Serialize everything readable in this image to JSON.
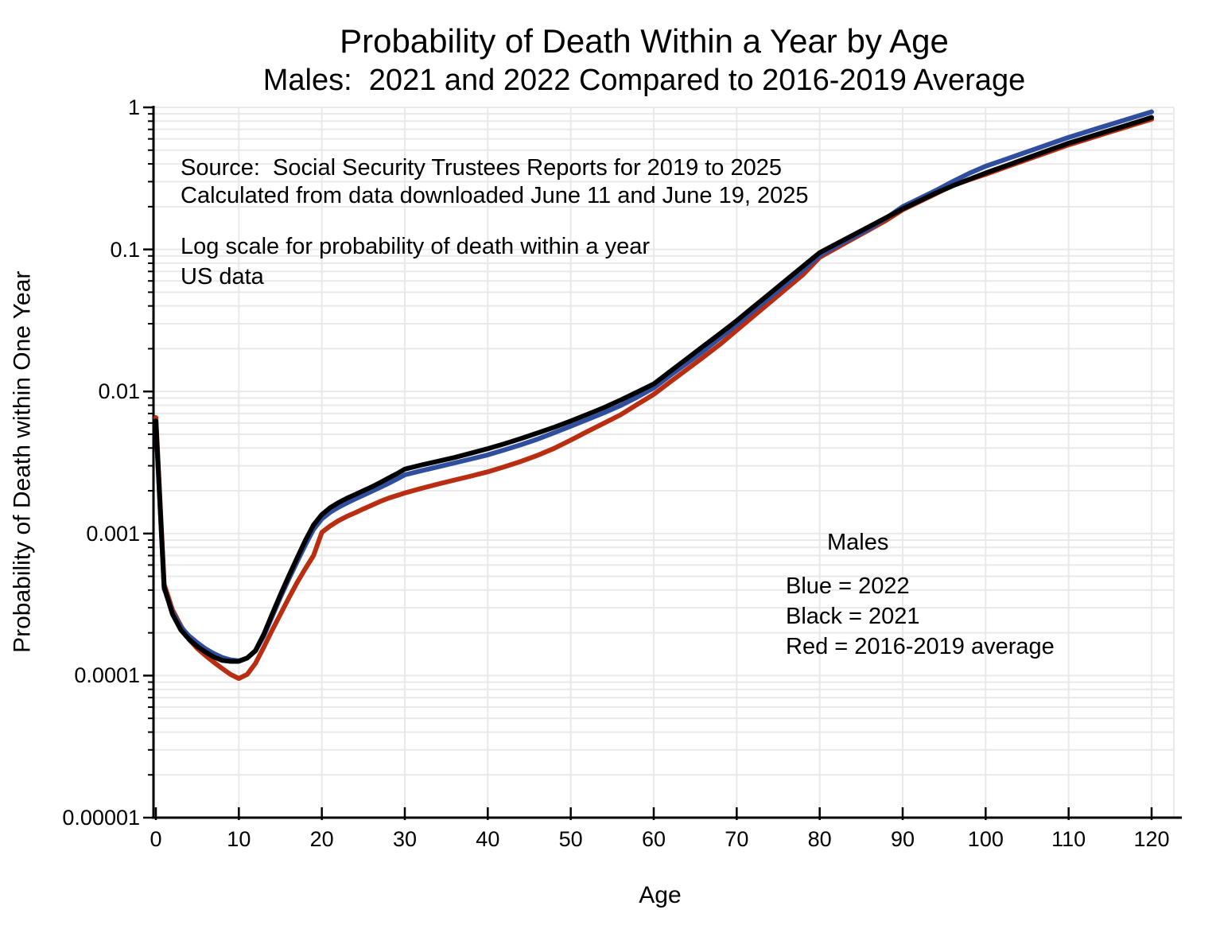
{
  "title": "Probability of Death Within a Year by Age",
  "subtitle": "Males:  2021 and 2022 Compared to 2016-2019 Average",
  "annotations": {
    "source_line1": "Source:  Social Security Trustees Reports for 2019 to 2025",
    "source_line2": "Calculated from data downloaded June 11 and June 19, 2025",
    "note_line1": "Log scale for probability of death within a year",
    "note_line2": "US data"
  },
  "legend": {
    "title": "Males",
    "entries": [
      {
        "label": "Blue = 2022",
        "color": "#2f4f9e"
      },
      {
        "label": "Black = 2021",
        "color": "#000000"
      },
      {
        "label": "Red = 2016-2019 average",
        "color": "#b92d10"
      }
    ]
  },
  "axes": {
    "x": {
      "label": "Age",
      "min": 0,
      "max": 120,
      "ticks": [
        0,
        10,
        20,
        30,
        40,
        50,
        60,
        70,
        80,
        90,
        100,
        110,
        120
      ]
    },
    "y": {
      "label": "Probability of Death within One Year",
      "scale": "log",
      "min": 1e-05,
      "max": 1,
      "ticks": [
        {
          "label": "1",
          "value": 1
        },
        {
          "label": "0.1",
          "value": 0.1
        },
        {
          "label": "0.01",
          "value": 0.01
        },
        {
          "label": "0.001",
          "value": 0.001
        },
        {
          "label": "0.0001",
          "value": 0.0001
        },
        {
          "label": "0.00001",
          "value": 1e-05
        }
      ]
    }
  },
  "colors": {
    "gridline": "#e9e9e9",
    "axis": "#000000",
    "blue_series": "#2f4f9e",
    "black_series": "#000000",
    "red_series": "#b92d10"
  },
  "chart_data": {
    "type": "line",
    "title": "Probability of Death Within a Year by Age",
    "xlabel": "Age",
    "ylabel": "Probability of Death within One Year",
    "x_range": [
      0,
      120
    ],
    "y_range_log": [
      1e-05,
      1
    ],
    "grid": true,
    "series": [
      {
        "name": "2016-2019 average",
        "color": "#b92d10",
        "points": [
          [
            0,
            0.00655
          ],
          [
            1,
            0.00044
          ],
          [
            2,
            0.00029
          ],
          [
            3,
            0.000225
          ],
          [
            4,
            0.00018
          ],
          [
            5,
            0.000155
          ],
          [
            6,
            0.000138
          ],
          [
            7,
            0.000124
          ],
          [
            8,
            0.000112
          ],
          [
            9,
            0.000102
          ],
          [
            10,
            9.55e-05
          ],
          [
            11,
            0.000102
          ],
          [
            12,
            0.000122
          ],
          [
            13,
            0.000158
          ],
          [
            14,
            0.000208
          ],
          [
            15,
            0.00027
          ],
          [
            16,
            0.00035
          ],
          [
            17,
            0.00045
          ],
          [
            18,
            0.000565
          ],
          [
            19,
            0.0007
          ],
          [
            20,
            0.00102
          ],
          [
            21,
            0.00113
          ],
          [
            22,
            0.00123
          ],
          [
            23,
            0.00132
          ],
          [
            24,
            0.0014
          ],
          [
            25,
            0.00149
          ],
          [
            26,
            0.00158
          ],
          [
            27,
            0.00168
          ],
          [
            28,
            0.00177
          ],
          [
            29,
            0.00185
          ],
          [
            30,
            0.00193
          ],
          [
            32,
            0.00208
          ],
          [
            34,
            0.00223
          ],
          [
            36,
            0.00238
          ],
          [
            38,
            0.00254
          ],
          [
            40,
            0.00272
          ],
          [
            42,
            0.00295
          ],
          [
            44,
            0.00322
          ],
          [
            46,
            0.00355
          ],
          [
            48,
            0.00398
          ],
          [
            50,
            0.00455
          ],
          [
            52,
            0.00522
          ],
          [
            54,
            0.00598
          ],
          [
            56,
            0.00685
          ],
          [
            58,
            0.00809
          ],
          [
            60,
            0.00955
          ],
          [
            62,
            0.0117
          ],
          [
            64,
            0.0143
          ],
          [
            66,
            0.0175
          ],
          [
            68,
            0.0215
          ],
          [
            70,
            0.027
          ],
          [
            72,
            0.0338
          ],
          [
            74,
            0.0424
          ],
          [
            76,
            0.0531
          ],
          [
            78,
            0.0665
          ],
          [
            80,
            0.088
          ],
          [
            82,
            0.1022
          ],
          [
            84,
            0.1187
          ],
          [
            86,
            0.1378
          ],
          [
            88,
            0.16
          ],
          [
            90,
            0.19
          ],
          [
            92,
            0.2166
          ],
          [
            94,
            0.2469
          ],
          [
            96,
            0.2815
          ],
          [
            98,
            0.309
          ],
          [
            100,
            0.338
          ],
          [
            102,
            0.3719
          ],
          [
            104,
            0.4092
          ],
          [
            106,
            0.4502
          ],
          [
            108,
            0.4954
          ],
          [
            110,
            0.545
          ],
          [
            112,
            0.592
          ],
          [
            114,
            0.644
          ],
          [
            116,
            0.7
          ],
          [
            118,
            0.761
          ],
          [
            120,
            0.825
          ]
        ]
      },
      {
        "name": "2022",
        "color": "#2f4f9e",
        "points": [
          [
            0,
            0.006
          ],
          [
            1,
            0.00041
          ],
          [
            2,
            0.00028
          ],
          [
            3,
            0.00022
          ],
          [
            4,
            0.00019
          ],
          [
            5,
            0.00017
          ],
          [
            6,
            0.000154
          ],
          [
            7,
            0.000143
          ],
          [
            8,
            0.000134
          ],
          [
            9,
            0.000129
          ],
          [
            10,
            0.000127
          ],
          [
            11,
            0.000133
          ],
          [
            12,
            0.000149
          ],
          [
            13,
            0.00019
          ],
          [
            14,
            0.00026
          ],
          [
            15,
            0.000355
          ],
          [
            16,
            0.000475
          ],
          [
            17,
            0.00063
          ],
          [
            18,
            0.00083
          ],
          [
            19,
            0.00107
          ],
          [
            20,
            0.00127
          ],
          [
            21,
            0.00141
          ],
          [
            22,
            0.00153
          ],
          [
            23,
            0.00164
          ],
          [
            24,
            0.00175
          ],
          [
            25,
            0.00186
          ],
          [
            26,
            0.00198
          ],
          [
            27,
            0.00211
          ],
          [
            28,
            0.00225
          ],
          [
            29,
            0.00241
          ],
          [
            30,
            0.00259
          ],
          [
            32,
            0.00277
          ],
          [
            34,
            0.00295
          ],
          [
            36,
            0.00314
          ],
          [
            38,
            0.00335
          ],
          [
            40,
            0.00358
          ],
          [
            42,
            0.00388
          ],
          [
            44,
            0.00422
          ],
          [
            46,
            0.00462
          ],
          [
            48,
            0.00512
          ],
          [
            50,
            0.0057
          ],
          [
            52,
            0.00634
          ],
          [
            54,
            0.00708
          ],
          [
            56,
            0.00796
          ],
          [
            58,
            0.00912
          ],
          [
            60,
            0.0106
          ],
          [
            62,
            0.013
          ],
          [
            64,
            0.0158
          ],
          [
            66,
            0.0193
          ],
          [
            68,
            0.0239
          ],
          [
            70,
            0.0296
          ],
          [
            72,
            0.037
          ],
          [
            74,
            0.0461
          ],
          [
            76,
            0.0575
          ],
          [
            78,
            0.0718
          ],
          [
            80,
            0.091
          ],
          [
            82,
            0.1055
          ],
          [
            84,
            0.1215
          ],
          [
            86,
            0.1405
          ],
          [
            88,
            0.166
          ],
          [
            90,
            0.2
          ],
          [
            92,
            0.228
          ],
          [
            94,
            0.26
          ],
          [
            96,
            0.3
          ],
          [
            98,
            0.343
          ],
          [
            100,
            0.385
          ],
          [
            102,
            0.4227
          ],
          [
            104,
            0.4641
          ],
          [
            106,
            0.5096
          ],
          [
            108,
            0.5595
          ],
          [
            110,
            0.615
          ],
          [
            112,
            0.668
          ],
          [
            114,
            0.726
          ],
          [
            116,
            0.789
          ],
          [
            118,
            0.857
          ],
          [
            120,
            0.93
          ]
        ]
      },
      {
        "name": "2021",
        "color": "#000000",
        "points": [
          [
            0,
            0.0062
          ],
          [
            1,
            0.00042
          ],
          [
            2,
            0.00027
          ],
          [
            3,
            0.00021
          ],
          [
            4,
            0.00018
          ],
          [
            5,
            0.00016
          ],
          [
            6,
            0.000146
          ],
          [
            7,
            0.000135
          ],
          [
            8,
            0.000128
          ],
          [
            9,
            0.000126
          ],
          [
            10,
            0.000126
          ],
          [
            11,
            0.000133
          ],
          [
            12,
            0.00015
          ],
          [
            13,
            0.000195
          ],
          [
            14,
            0.00027
          ],
          [
            15,
            0.00037
          ],
          [
            16,
            0.0005
          ],
          [
            17,
            0.00067
          ],
          [
            18,
            0.00089
          ],
          [
            19,
            0.00115
          ],
          [
            20,
            0.00136
          ],
          [
            21,
            0.00152
          ],
          [
            22,
            0.00165
          ],
          [
            23,
            0.00177
          ],
          [
            24,
            0.00188
          ],
          [
            25,
            0.002
          ],
          [
            26,
            0.00213
          ],
          [
            27,
            0.00228
          ],
          [
            28,
            0.00245
          ],
          [
            29,
            0.00263
          ],
          [
            30,
            0.00284
          ],
          [
            32,
            0.00304
          ],
          [
            34,
            0.00323
          ],
          [
            36,
            0.00343
          ],
          [
            38,
            0.00368
          ],
          [
            40,
            0.00396
          ],
          [
            42,
            0.00428
          ],
          [
            44,
            0.00466
          ],
          [
            46,
            0.0051
          ],
          [
            48,
            0.0056
          ],
          [
            50,
            0.0062
          ],
          [
            52,
            0.0069
          ],
          [
            54,
            0.0077
          ],
          [
            56,
            0.0087
          ],
          [
            58,
            0.0099
          ],
          [
            60,
            0.0113
          ],
          [
            62,
            0.0139
          ],
          [
            64,
            0.017
          ],
          [
            66,
            0.0209
          ],
          [
            68,
            0.0256
          ],
          [
            70,
            0.0315
          ],
          [
            72,
            0.0393
          ],
          [
            74,
            0.049
          ],
          [
            76,
            0.0611
          ],
          [
            78,
            0.0762
          ],
          [
            80,
            0.095
          ],
          [
            82,
            0.1094
          ],
          [
            84,
            0.126
          ],
          [
            86,
            0.1452
          ],
          [
            88,
            0.1673
          ],
          [
            90,
            0.193
          ],
          [
            92,
            0.2194
          ],
          [
            94,
            0.2494
          ],
          [
            96,
            0.28
          ],
          [
            98,
            0.311
          ],
          [
            100,
            0.345
          ],
          [
            102,
            0.38
          ],
          [
            104,
            0.419
          ],
          [
            106,
            0.462
          ],
          [
            108,
            0.509
          ],
          [
            110,
            0.56
          ],
          [
            112,
            0.608
          ],
          [
            114,
            0.661
          ],
          [
            116,
            0.718
          ],
          [
            118,
            0.781
          ],
          [
            120,
            0.85
          ]
        ]
      }
    ]
  }
}
